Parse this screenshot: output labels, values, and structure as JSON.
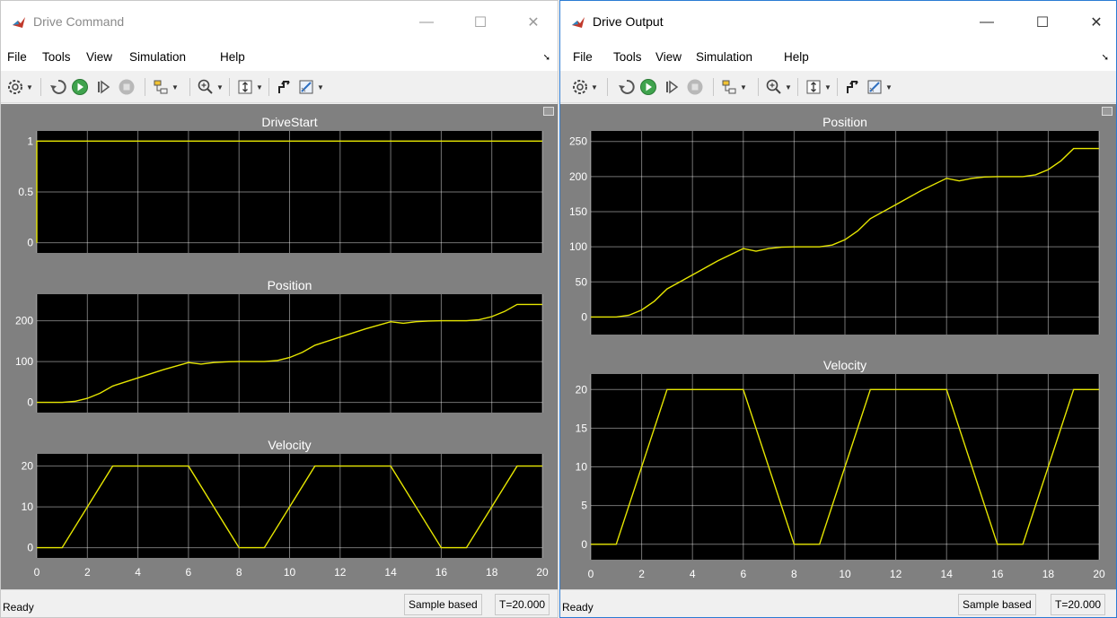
{
  "left": {
    "title": "Drive Command",
    "menu": [
      "File",
      "Tools",
      "View",
      "Simulation",
      "Help"
    ],
    "status": "Ready",
    "sample_mode": "Sample based",
    "time": "T=20.000"
  },
  "right": {
    "title": "Drive Output",
    "menu": [
      "File",
      "Tools",
      "View",
      "Simulation",
      "Help"
    ],
    "status": "Ready",
    "sample_mode": "Sample based",
    "time": "T=20.000"
  },
  "toolbar_icons": [
    "settings-icon",
    "step-back-icon",
    "run-icon",
    "step-forward-icon",
    "stop-icon",
    "highlight-icon",
    "zoom-icon",
    "autoscale-icon",
    "triggers-icon",
    "cursor-measurements-icon"
  ],
  "colors": {
    "signal": "#e6e600",
    "plot_bg": "#000000",
    "figure_bg": "#808080",
    "grid": "#ffffff"
  },
  "chart_data": [
    {
      "type": "line",
      "window": "Drive Command",
      "title": "DriveStart",
      "xlim": [
        0,
        20
      ],
      "ylim": [
        -0.1,
        1.1
      ],
      "yticks": [
        0,
        0.5,
        1
      ],
      "ytick_labels": [
        "0",
        "0.5",
        "1"
      ],
      "x": [
        0,
        0,
        20
      ],
      "y": [
        0,
        1,
        1
      ],
      "grid": true
    },
    {
      "type": "line",
      "window": "Drive Command",
      "title": "Position",
      "xlim": [
        0,
        20
      ],
      "ylim": [
        -25,
        265
      ],
      "yticks": [
        0,
        100,
        200
      ],
      "ytick_labels": [
        "0",
        "100",
        "200"
      ],
      "x": [
        0,
        1,
        1.5,
        2,
        2.5,
        3,
        4,
        5,
        6,
        6.5,
        7,
        7.5,
        8,
        9,
        9.5,
        10,
        10.5,
        11,
        12,
        13,
        14,
        14.5,
        15,
        15.5,
        16,
        17,
        17.5,
        18,
        18.5,
        19,
        20
      ],
      "y": [
        0,
        0,
        2.5,
        10,
        22.5,
        40,
        60,
        80,
        97.5,
        93.8,
        97.5,
        99.4,
        100,
        100,
        102.5,
        110,
        122.5,
        140,
        160,
        180,
        197.5,
        193.8,
        197.5,
        199.4,
        200,
        200,
        202.5,
        210,
        222.5,
        240,
        240
      ],
      "grid": true
    },
    {
      "type": "line",
      "window": "Drive Command",
      "title": "Velocity",
      "xlim": [
        0,
        20
      ],
      "ylim": [
        -2.5,
        23
      ],
      "yticks": [
        0,
        10,
        20
      ],
      "ytick_labels": [
        "0",
        "10",
        "20"
      ],
      "xticks": [
        0,
        2,
        4,
        6,
        8,
        10,
        12,
        14,
        16,
        18,
        20
      ],
      "x": [
        0,
        1,
        3,
        6,
        8,
        9,
        11,
        14,
        16,
        17,
        19,
        20
      ],
      "y": [
        0,
        0,
        20,
        20,
        0,
        0,
        20,
        20,
        0,
        0,
        20,
        20
      ],
      "grid": true
    },
    {
      "type": "line",
      "window": "Drive Output",
      "title": "Position",
      "xlim": [
        0,
        20
      ],
      "ylim": [
        -25,
        265
      ],
      "yticks": [
        0,
        50,
        100,
        150,
        200,
        250
      ],
      "ytick_labels": [
        "0",
        "50",
        "100",
        "150",
        "200",
        "250"
      ],
      "x": [
        0,
        1,
        1.5,
        2,
        2.5,
        3,
        4,
        5,
        6,
        6.5,
        7,
        7.5,
        8,
        9,
        9.5,
        10,
        10.5,
        11,
        12,
        13,
        14,
        14.5,
        15,
        15.5,
        16,
        17,
        17.5,
        18,
        18.5,
        19,
        20
      ],
      "y": [
        0,
        0,
        2.5,
        10,
        22.5,
        40,
        60,
        80,
        97.5,
        93.8,
        97.5,
        99.4,
        100,
        100,
        102.5,
        110,
        122.5,
        140,
        160,
        180,
        197.5,
        193.8,
        197.5,
        199.4,
        200,
        200,
        202.5,
        210,
        222.5,
        240,
        240
      ],
      "grid": true
    },
    {
      "type": "line",
      "window": "Drive Output",
      "title": "Velocity",
      "xlim": [
        0,
        20
      ],
      "ylim": [
        -2,
        22
      ],
      "yticks": [
        0,
        5,
        10,
        15,
        20
      ],
      "ytick_labels": [
        "0",
        "5",
        "10",
        "15",
        "20"
      ],
      "xticks": [
        0,
        2,
        4,
        6,
        8,
        10,
        12,
        14,
        16,
        18,
        20
      ],
      "x": [
        0,
        1,
        3,
        6,
        8,
        9,
        11,
        14,
        16,
        17,
        19,
        20
      ],
      "y": [
        0,
        0,
        20,
        20,
        0,
        0,
        20,
        20,
        0,
        0,
        20,
        20
      ],
      "grid": true
    }
  ]
}
